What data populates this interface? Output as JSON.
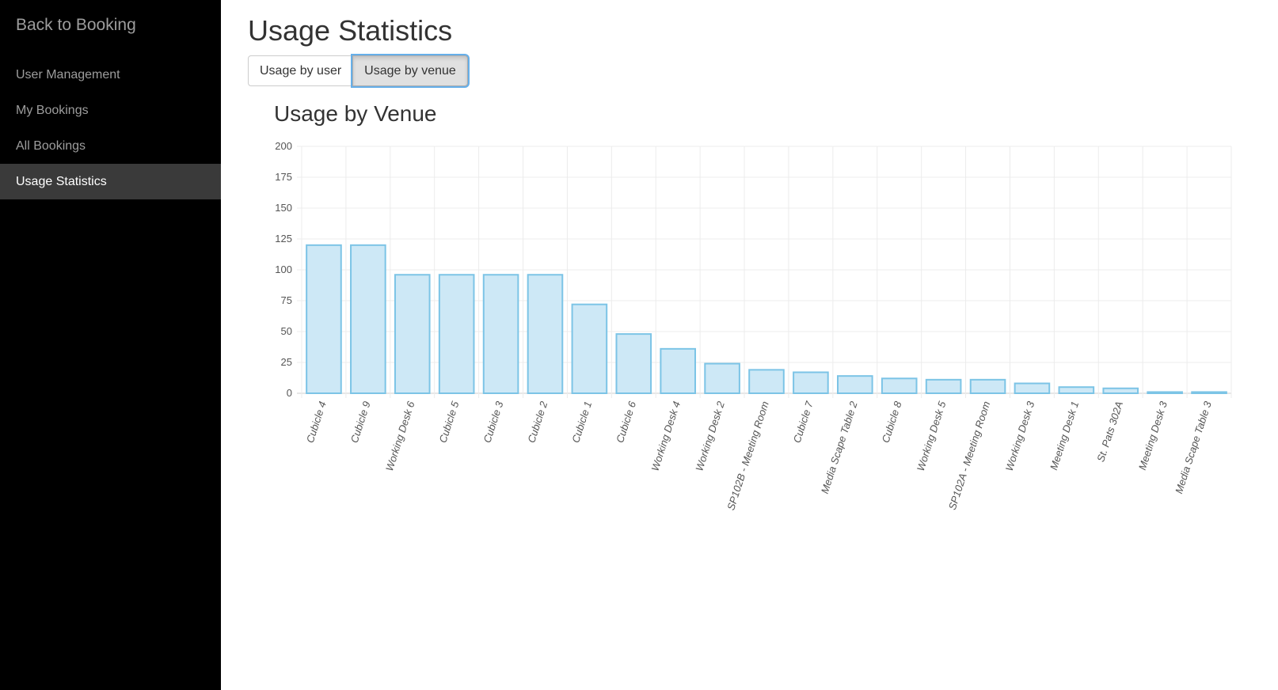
{
  "sidebar": {
    "brand": "Back to Booking",
    "items": [
      {
        "label": "User Management",
        "active": false
      },
      {
        "label": "My Bookings",
        "active": false
      },
      {
        "label": "All Bookings",
        "active": false
      },
      {
        "label": "Usage Statistics",
        "active": true
      }
    ]
  },
  "main": {
    "title": "Usage Statistics",
    "tabs": [
      {
        "label": "Usage by user",
        "active": false
      },
      {
        "label": "Usage by venue",
        "active": true
      }
    ]
  },
  "colors": {
    "sidebar_bg": "#000000",
    "bar_fill": "#cde8f6",
    "bar_stroke": "#7cc4e6",
    "active_nav_bg": "#3a3a3a"
  },
  "chart_data": {
    "type": "bar",
    "title": "Usage by Venue",
    "categories": [
      "Cubicle 4",
      "Cubicle 9",
      "Working Desk 6",
      "Cubicle 5",
      "Cubicle 3",
      "Cubicle 2",
      "Cubicle 1",
      "Cubicle 6",
      "Working Desk 4",
      "Working Desk 2",
      "SP102B - Meeting Room",
      "Cubicle 7",
      "Media Scape Table 2",
      "Cubicle 8",
      "Working Desk 5",
      "SP102A - Meeting Room",
      "Working Desk 3",
      "Meeting Desk 1",
      "St. Pats 302A",
      "Meeting Desk 3",
      "Media Scape Table 3"
    ],
    "values": [
      120,
      120,
      96,
      96,
      96,
      96,
      72,
      48,
      36,
      24,
      19,
      17,
      14,
      12,
      11,
      11,
      8,
      5,
      4,
      1,
      1
    ],
    "ylim": [
      0,
      200
    ],
    "yticks": [
      0,
      25,
      50,
      75,
      100,
      125,
      150,
      175,
      200
    ],
    "grid": true,
    "legend": "none"
  }
}
